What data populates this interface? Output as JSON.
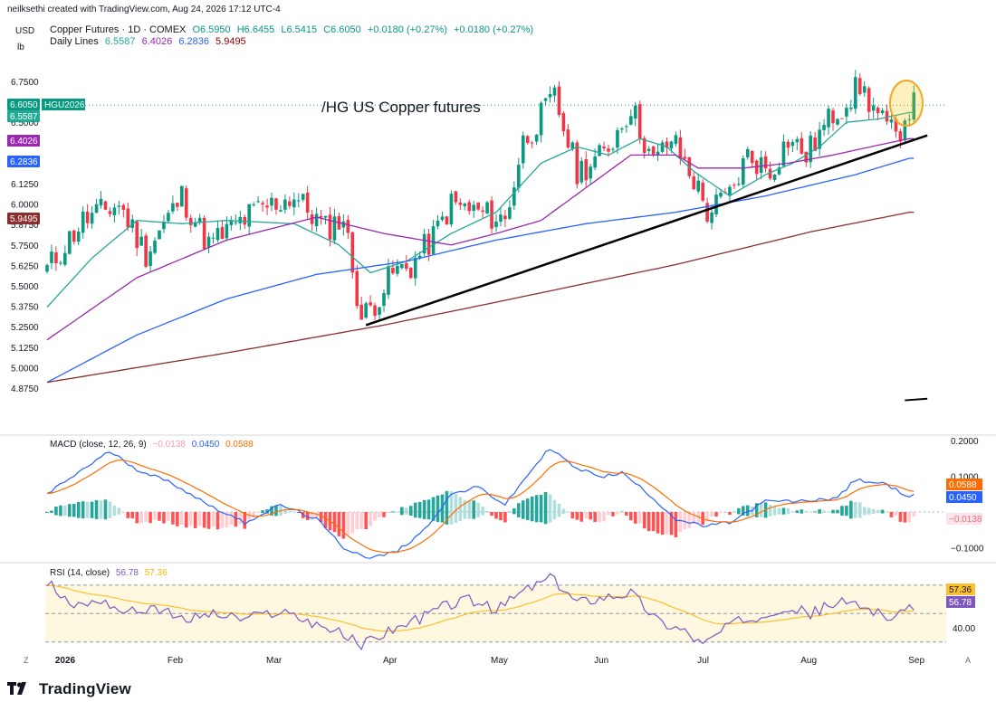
{
  "header": {
    "credit": "neilksethi created with TradingView.com, Aug 24, 2026 17:12 UTC-4",
    "currency": "USD",
    "unit": "lb",
    "symbol_line": "Copper Futures · 1D · COMEX",
    "ohlc": {
      "o": "O6.5950",
      "h": "H6.6455",
      "l": "L6.5415",
      "c": "C6.6050",
      "chg": "+0.0180 (+0.27%)",
      "chg2": "+0.0180 (+0.27%)"
    },
    "ma_label": "Daily Lines",
    "ma_values": [
      "6.5587",
      "6.4026",
      "6.2836",
      "5.9495"
    ],
    "macd_label": "MACD (close, 12, 26, 9)",
    "macd_values": [
      "−0.0138",
      "0.0450",
      "0.0588"
    ],
    "rsi_label": "RSI (14, close)",
    "rsi_values": [
      "56.78",
      "57.36"
    ]
  },
  "annotation": "/HG US Copper futures",
  "price_tag_symbol": "HGU2026",
  "brand": "TradingView",
  "bottom_left_icon": "Z",
  "bottom_right_icon": "A",
  "colors": {
    "up": "#089981",
    "down": "#f23645",
    "ma20": "#26a69a",
    "ma50": "#9c27b0",
    "ma100": "#2962ff",
    "ma200": "#8b2e2e",
    "macd": "#2962ff",
    "signal": "#ff6d00",
    "rsi": "#7e57c2",
    "rsi_ma": "#fbc02d"
  },
  "chart_data": {
    "type": "candlestick",
    "price_axis": {
      "ticks": [
        "6.7500",
        "6.6250",
        "6.5000",
        "6.3750",
        "6.2500",
        "6.1250",
        "6.0000",
        "5.8750",
        "5.7500",
        "5.6250",
        "5.5000",
        "5.3750",
        "5.2500",
        "5.1250",
        "5.0000",
        "4.8750"
      ],
      "price_labels": [
        {
          "value": "6.6050",
          "color": "#089981"
        },
        {
          "value": "6.5587",
          "color": "#22ab94"
        },
        {
          "value": "6.4026",
          "color": "#9c27b0"
        },
        {
          "value": "6.2836",
          "color": "#2962ff"
        },
        {
          "value": "5.9495",
          "color": "#8b2e2e"
        }
      ]
    },
    "x_axis": {
      "labels": [
        "2026",
        "Feb",
        "Mar",
        "Apr",
        "May",
        "Jun",
        "Jul",
        "Aug",
        "Sep"
      ]
    },
    "price_anchors": [
      [
        0,
        5.6
      ],
      [
        8,
        5.9
      ],
      [
        16,
        6.0
      ],
      [
        22,
        5.7
      ],
      [
        30,
        6.05
      ],
      [
        36,
        5.75
      ],
      [
        46,
        5.95
      ],
      [
        55,
        6.05
      ],
      [
        62,
        5.85
      ],
      [
        66,
        5.92
      ],
      [
        70,
        5.3
      ],
      [
        73,
        5.4
      ],
      [
        77,
        5.58
      ],
      [
        81,
        5.62
      ],
      [
        86,
        5.8
      ],
      [
        90,
        6.0
      ],
      [
        96,
        5.95
      ],
      [
        102,
        5.9
      ],
      [
        106,
        6.38
      ],
      [
        113,
        6.65
      ],
      [
        118,
        6.2
      ],
      [
        124,
        6.3
      ],
      [
        130,
        6.6
      ],
      [
        135,
        6.25
      ],
      [
        139,
        6.4
      ],
      [
        144,
        6.15
      ],
      [
        147,
        5.95
      ],
      [
        152,
        6.05
      ],
      [
        156,
        6.3
      ],
      [
        161,
        6.2
      ],
      [
        165,
        6.4
      ],
      [
        169,
        6.3
      ],
      [
        175,
        6.55
      ],
      [
        181,
        6.72
      ],
      [
        186,
        6.5
      ],
      [
        189,
        6.4
      ],
      [
        192,
        6.6
      ]
    ],
    "ma": [
      {
        "name": "20",
        "anchors": [
          [
            0,
            5.37
          ],
          [
            10,
            5.67
          ],
          [
            20,
            5.9
          ],
          [
            30,
            5.88
          ],
          [
            40,
            5.9
          ],
          [
            55,
            5.88
          ],
          [
            65,
            5.75
          ],
          [
            72,
            5.58
          ],
          [
            80,
            5.65
          ],
          [
            90,
            5.82
          ],
          [
            100,
            5.95
          ],
          [
            110,
            6.25
          ],
          [
            118,
            6.35
          ],
          [
            125,
            6.3
          ],
          [
            132,
            6.4
          ],
          [
            138,
            6.35
          ],
          [
            144,
            6.2
          ],
          [
            152,
            6.05
          ],
          [
            160,
            6.18
          ],
          [
            166,
            6.25
          ],
          [
            172,
            6.35
          ],
          [
            178,
            6.5
          ],
          [
            185,
            6.52
          ],
          [
            192,
            6.56
          ]
        ]
      },
      {
        "name": "50",
        "anchors": [
          [
            0,
            5.17
          ],
          [
            20,
            5.55
          ],
          [
            40,
            5.78
          ],
          [
            60,
            5.92
          ],
          [
            75,
            5.82
          ],
          [
            90,
            5.75
          ],
          [
            100,
            5.82
          ],
          [
            110,
            5.9
          ],
          [
            120,
            6.1
          ],
          [
            130,
            6.3
          ],
          [
            140,
            6.3
          ],
          [
            145,
            6.22
          ],
          [
            155,
            6.22
          ],
          [
            165,
            6.25
          ],
          [
            175,
            6.3
          ],
          [
            185,
            6.36
          ],
          [
            192,
            6.4
          ]
        ]
      },
      {
        "name": "100",
        "anchors": [
          [
            0,
            4.91
          ],
          [
            20,
            5.2
          ],
          [
            40,
            5.42
          ],
          [
            60,
            5.57
          ],
          [
            80,
            5.65
          ],
          [
            100,
            5.78
          ],
          [
            120,
            5.88
          ],
          [
            140,
            5.95
          ],
          [
            160,
            6.05
          ],
          [
            180,
            6.18
          ],
          [
            192,
            6.28
          ]
        ]
      },
      {
        "name": "200",
        "anchors": [
          [
            0,
            4.91
          ],
          [
            40,
            5.09
          ],
          [
            75,
            5.26
          ],
          [
            100,
            5.4
          ],
          [
            140,
            5.63
          ],
          [
            170,
            5.83
          ],
          [
            192,
            5.95
          ]
        ]
      }
    ],
    "trendline": {
      "from": [
        71,
        5.26
      ],
      "to": [
        196,
        6.42
      ]
    },
    "trendline_stub": {
      "from": [
        191,
        4.8
      ],
      "to": [
        196,
        4.81
      ]
    },
    "macd_axis": {
      "ticks": [
        "0.2000",
        "0.1000",
        "−0.1000"
      ]
    },
    "macd_anchors": [
      [
        0,
        0.05
      ],
      [
        8,
        0.12
      ],
      [
        14,
        0.17
      ],
      [
        20,
        0.12
      ],
      [
        28,
        0.08
      ],
      [
        36,
        0.02
      ],
      [
        44,
        -0.03
      ],
      [
        52,
        0.02
      ],
      [
        60,
        -0.02
      ],
      [
        66,
        -0.1
      ],
      [
        72,
        -0.13
      ],
      [
        78,
        -0.11
      ],
      [
        84,
        -0.05
      ],
      [
        90,
        0.05
      ],
      [
        96,
        0.07
      ],
      [
        102,
        0.02
      ],
      [
        108,
        0.12
      ],
      [
        112,
        0.18
      ],
      [
        118,
        0.12
      ],
      [
        124,
        0.1
      ],
      [
        128,
        0.11
      ],
      [
        134,
        0.05
      ],
      [
        140,
        -0.02
      ],
      [
        146,
        -0.04
      ],
      [
        152,
        -0.03
      ],
      [
        160,
        0.03
      ],
      [
        168,
        0.03
      ],
      [
        176,
        0.04
      ],
      [
        180,
        0.09
      ],
      [
        186,
        0.08
      ],
      [
        192,
        0.045
      ]
    ],
    "rsi_axis": {
      "ticks": [
        "40.00"
      ],
      "upper": 70,
      "lower": 30
    },
    "rsi_anchors": [
      [
        0,
        72
      ],
      [
        6,
        55
      ],
      [
        12,
        60
      ],
      [
        18,
        50
      ],
      [
        24,
        55
      ],
      [
        30,
        45
      ],
      [
        36,
        50
      ],
      [
        44,
        46
      ],
      [
        52,
        52
      ],
      [
        58,
        45
      ],
      [
        64,
        38
      ],
      [
        70,
        28
      ],
      [
        76,
        38
      ],
      [
        82,
        45
      ],
      [
        88,
        55
      ],
      [
        94,
        60
      ],
      [
        100,
        52
      ],
      [
        106,
        66
      ],
      [
        112,
        75
      ],
      [
        118,
        58
      ],
      [
        124,
        62
      ],
      [
        130,
        65
      ],
      [
        136,
        45
      ],
      [
        142,
        38
      ],
      [
        146,
        28
      ],
      [
        152,
        42
      ],
      [
        158,
        48
      ],
      [
        164,
        55
      ],
      [
        170,
        50
      ],
      [
        176,
        58
      ],
      [
        182,
        55
      ],
      [
        186,
        50
      ],
      [
        189,
        45
      ],
      [
        192,
        56
      ]
    ]
  }
}
